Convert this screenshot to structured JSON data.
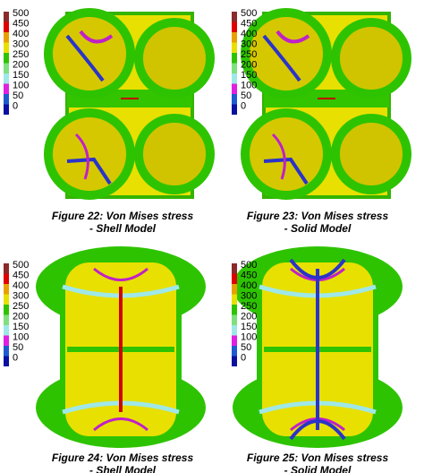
{
  "legend_labels": [
    500,
    450,
    400,
    300,
    250,
    200,
    150,
    100,
    50,
    0
  ],
  "figures": [
    {
      "caption": "Figure 22: Von Mises stress",
      "subcaption": "- Shell Model"
    },
    {
      "caption": "Figure 23: Von Mises stress",
      "subcaption": "- Solid Model"
    },
    {
      "caption": "Figure 24: Von Mises stress",
      "subcaption": "- Shell Model"
    },
    {
      "caption": "Figure 25: Von Mises stress",
      "subcaption": "- Solid Model"
    }
  ]
}
